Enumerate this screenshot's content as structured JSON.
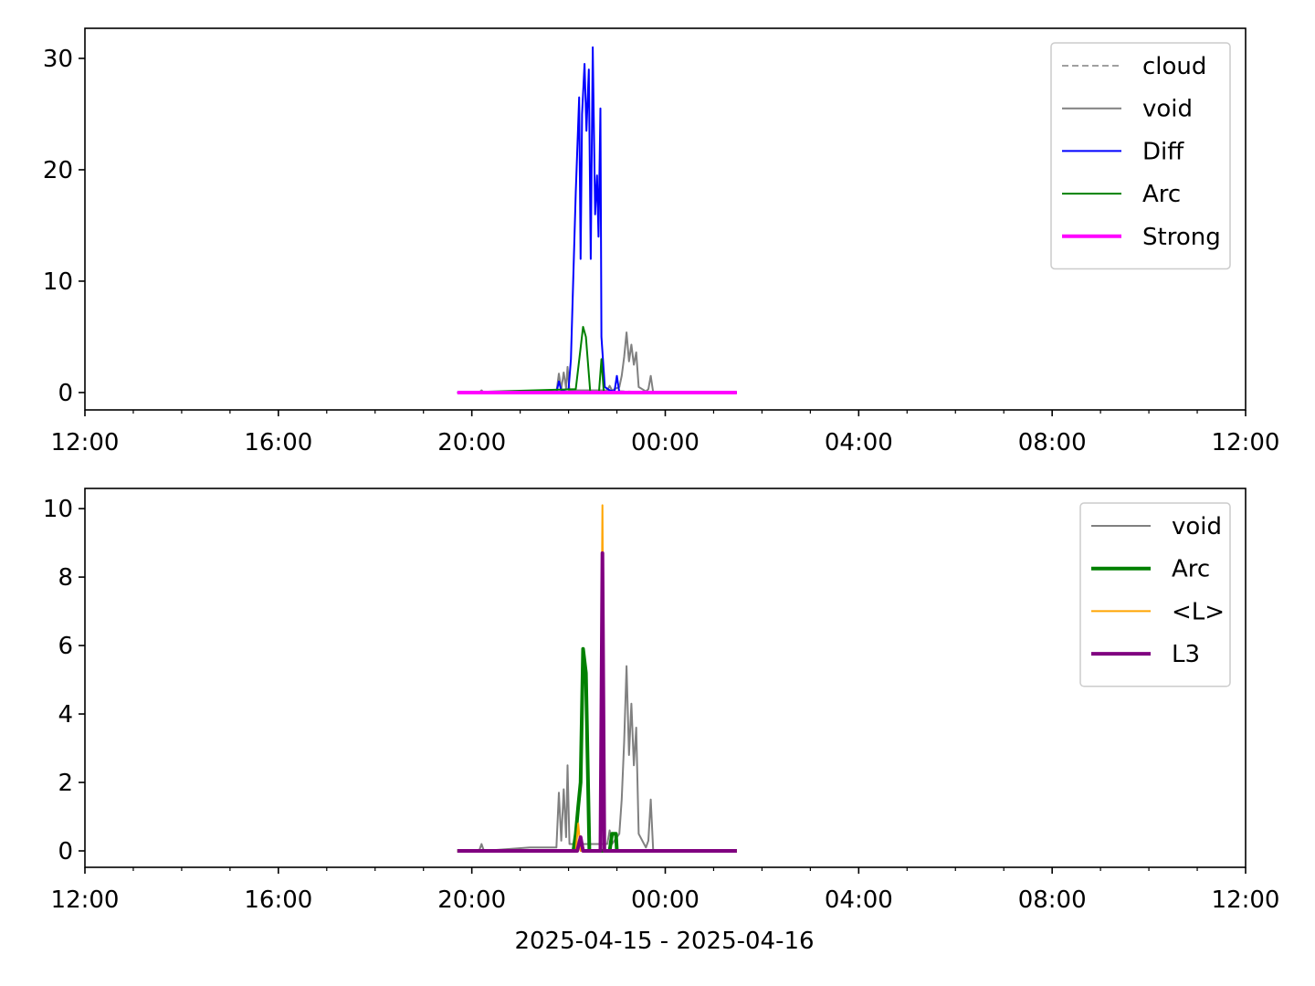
{
  "chart_data": [
    {
      "type": "line",
      "legend": "upper right",
      "grid": false,
      "xlim": [
        12,
        36
      ],
      "ylim": [
        -1.56,
        32.7
      ],
      "xticks": [
        {
          "value": 12,
          "label": "12:00"
        },
        {
          "value": 16,
          "label": "16:00"
        },
        {
          "value": 20,
          "label": "20:00"
        },
        {
          "value": 24,
          "label": "00:00"
        },
        {
          "value": 28,
          "label": "04:00"
        },
        {
          "value": 32,
          "label": "08:00"
        },
        {
          "value": 36,
          "label": "12:00"
        }
      ],
      "xticks_minor": [
        13,
        14,
        15,
        17,
        18,
        19,
        21,
        22,
        23,
        25,
        26,
        27,
        29,
        30,
        31,
        33,
        34,
        35
      ],
      "yticks": [
        0,
        10,
        20,
        30
      ],
      "series": [
        {
          "name": "cloud",
          "color": "#808080",
          "linestyle": "dashed",
          "linewidth": 1.5,
          "x": [
            19.7,
            21.8,
            22.5,
            23.3,
            25.48
          ],
          "values": [
            0,
            0.1,
            0.2,
            0.1,
            0
          ]
        },
        {
          "name": "void",
          "color": "#808080",
          "linestyle": "solid",
          "linewidth": 2,
          "x": [
            19.7,
            20.15,
            20.2,
            20.25,
            21.75,
            21.8,
            21.85,
            21.9,
            21.95,
            21.98,
            22.02,
            22.8,
            22.85,
            22.9,
            23.05,
            23.1,
            23.15,
            23.2,
            23.25,
            23.3,
            23.35,
            23.4,
            23.45,
            23.6,
            23.65,
            23.7,
            23.75,
            25.48
          ],
          "values": [
            0,
            0,
            0.2,
            0,
            0,
            1.7,
            0.3,
            1.8,
            0.4,
            2.3,
            0.2,
            0.2,
            0.6,
            0.2,
            0.5,
            1.5,
            3.2,
            5.4,
            2.8,
            4.3,
            2.5,
            3.6,
            0.5,
            0.1,
            0.3,
            1.5,
            0,
            0
          ]
        },
        {
          "name": "Diff",
          "color": "#0000ff",
          "linestyle": "solid",
          "linewidth": 2,
          "x": [
            19.7,
            21.75,
            21.8,
            21.85,
            22.0,
            22.05,
            22.15,
            22.22,
            22.25,
            22.28,
            22.33,
            22.37,
            22.42,
            22.46,
            22.5,
            22.55,
            22.59,
            22.62,
            22.66,
            22.68,
            22.75,
            22.85,
            22.95,
            23.0,
            23.05,
            25.48
          ],
          "values": [
            0,
            0,
            1,
            0.2,
            0.3,
            3,
            18,
            26.5,
            12,
            25,
            29.5,
            23.5,
            29,
            12,
            31,
            16,
            19.5,
            14,
            25.5,
            5,
            0.5,
            0.2,
            0.1,
            1.5,
            0,
            0
          ]
        },
        {
          "name": "Arc",
          "color": "#008000",
          "linestyle": "solid",
          "linewidth": 2,
          "x": [
            19.7,
            22.15,
            22.3,
            22.36,
            22.45,
            22.63,
            22.68,
            22.73,
            25.48
          ],
          "values": [
            0,
            0.3,
            5.9,
            5,
            0,
            0,
            3,
            0,
            0
          ]
        },
        {
          "name": "Strong",
          "color": "#ff00ff",
          "linestyle": "solid",
          "linewidth": 4,
          "x": [
            19.7,
            25.48
          ],
          "values": [
            0,
            0
          ]
        }
      ]
    },
    {
      "type": "line",
      "legend": "upper right",
      "grid": false,
      "x_label": "2025-04-15 - 2025-04-16",
      "xlim": [
        12,
        36
      ],
      "ylim": [
        -0.48,
        10.59
      ],
      "xticks": [
        {
          "value": 12,
          "label": "12:00"
        },
        {
          "value": 16,
          "label": "16:00"
        },
        {
          "value": 20,
          "label": "20:00"
        },
        {
          "value": 24,
          "label": "00:00"
        },
        {
          "value": 28,
          "label": "04:00"
        },
        {
          "value": 32,
          "label": "08:00"
        },
        {
          "value": 36,
          "label": "12:00"
        }
      ],
      "xticks_minor": [
        13,
        14,
        15,
        17,
        18,
        19,
        21,
        22,
        23,
        25,
        26,
        27,
        29,
        30,
        31,
        33,
        34,
        35
      ],
      "yticks": [
        0,
        2,
        4,
        6,
        8,
        10
      ],
      "series": [
        {
          "name": "void",
          "color": "#808080",
          "linestyle": "solid",
          "linewidth": 2,
          "x": [
            19.7,
            20.15,
            20.2,
            20.25,
            21.2,
            21.75,
            21.8,
            21.85,
            21.9,
            21.95,
            21.98,
            22.02,
            22.8,
            22.85,
            22.9,
            23.05,
            23.1,
            23.15,
            23.2,
            23.25,
            23.3,
            23.35,
            23.4,
            23.45,
            23.6,
            23.65,
            23.7,
            23.75,
            25.48
          ],
          "values": [
            0,
            0,
            0.2,
            0,
            0.1,
            0.1,
            1.7,
            0.3,
            1.8,
            0.4,
            2.5,
            0.2,
            0.2,
            0.6,
            0.2,
            0.5,
            1.5,
            3.2,
            5.4,
            2.8,
            4.3,
            2.5,
            3.6,
            0.5,
            0.1,
            0.3,
            1.5,
            0,
            0
          ]
        },
        {
          "name": "Arc",
          "color": "#008000",
          "linestyle": "solid",
          "linewidth": 4,
          "x": [
            19.7,
            22.1,
            22.15,
            22.2,
            22.25,
            22.3,
            22.36,
            22.43,
            22.85,
            22.9,
            22.98,
            23.0,
            25.48
          ],
          "values": [
            0,
            0,
            0.5,
            1.3,
            2,
            5.9,
            5.2,
            0,
            0,
            0.5,
            0.5,
            0,
            0
          ]
        },
        {
          "name": "<L>",
          "color": "#ffa500",
          "linestyle": "solid",
          "linewidth": 2,
          "x": [
            19.7,
            22.15,
            22.2,
            22.25,
            22.65,
            22.7,
            22.74,
            25.48
          ],
          "values": [
            0,
            0,
            0.8,
            0,
            0,
            10.1,
            0,
            0
          ]
        },
        {
          "name": "L3",
          "color": "#800080",
          "linestyle": "solid",
          "linewidth": 4,
          "x": [
            19.7,
            22.18,
            22.25,
            22.3,
            22.66,
            22.7,
            22.74,
            25.48
          ],
          "values": [
            0,
            0,
            0.4,
            0,
            0,
            8.7,
            0,
            0
          ]
        }
      ]
    }
  ]
}
